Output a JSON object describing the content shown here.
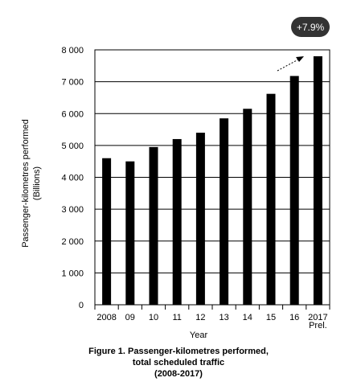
{
  "chart_data": {
    "type": "bar",
    "categories": [
      "2008",
      "09",
      "10",
      "11",
      "12",
      "13",
      "14",
      "15",
      "16",
      "2017"
    ],
    "category_sublabels": [
      "",
      "",
      "",
      "",
      "",
      "",
      "",
      "",
      "",
      "Prel."
    ],
    "values": [
      4600,
      4500,
      4950,
      5200,
      5400,
      5850,
      6150,
      6620,
      7180,
      7800
    ],
    "xlabel": "Year",
    "ylabel_line1": "Passenger-kilometres performed",
    "ylabel_line2": "(Billions)",
    "ylim": [
      0,
      8000
    ],
    "yticks": [
      0,
      1000,
      2000,
      3000,
      4000,
      5000,
      6000,
      7000,
      8000
    ],
    "ytick_labels": [
      "0",
      "1 000",
      "2 000",
      "3 000",
      "4 000",
      "5 000",
      "6 000",
      "7 000",
      "8 000"
    ],
    "grid": true,
    "bar_color": "#000000",
    "annotation": {
      "text": "+7.9%",
      "badge_color": "#333333",
      "text_color": "#ffffff"
    }
  },
  "caption": {
    "line1": "Figure 1. Passenger-kilometres performed,",
    "line2": "total scheduled traffic",
    "line3": "(2008-2017)"
  }
}
